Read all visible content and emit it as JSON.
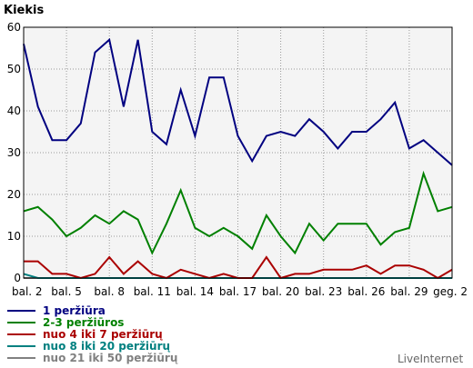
{
  "chart_data": {
    "type": "line",
    "title": "Kiekis",
    "xlabel": "",
    "ylabel": "",
    "ylim": [
      0,
      60
    ],
    "yticks": [
      0,
      10,
      20,
      30,
      40,
      50,
      60
    ],
    "grid": true,
    "legend_position": "bottom-left",
    "x_labels": [
      "bal. 2",
      "bal. 5",
      "bal. 8",
      "bal. 11",
      "bal. 14",
      "bal. 17",
      "bal. 20",
      "bal. 23",
      "bal. 26",
      "bal. 29",
      "geg. 2"
    ],
    "x_label_indices": [
      0,
      3,
      6,
      9,
      12,
      15,
      18,
      21,
      24,
      27,
      30
    ],
    "series": [
      {
        "name": "1 peržiūra",
        "color": "#000080",
        "values": [
          56,
          41,
          33,
          33,
          37,
          54,
          57,
          41,
          57,
          35,
          32,
          45,
          34,
          48,
          48,
          34,
          28,
          34,
          35,
          34,
          38,
          35,
          31,
          35,
          35,
          38,
          42,
          31,
          33,
          30,
          27
        ]
      },
      {
        "name": "2-3 peržiūros",
        "color": "#008000",
        "values": [
          16,
          17,
          14,
          10,
          12,
          15,
          13,
          16,
          14,
          6,
          13,
          21,
          12,
          10,
          12,
          10,
          7,
          15,
          10,
          6,
          13,
          9,
          13,
          13,
          13,
          8,
          11,
          12,
          25,
          16,
          17
        ]
      },
      {
        "name": "nuo 4 iki 7 peržiūrų",
        "color": "#aa0000",
        "values": [
          4,
          4,
          1,
          1,
          0,
          1,
          5,
          1,
          4,
          1,
          0,
          2,
          1,
          0,
          1,
          0,
          0,
          5,
          0,
          1,
          1,
          2,
          2,
          2,
          3,
          1,
          3,
          3,
          2,
          0,
          2
        ]
      },
      {
        "name": "nuo 8 iki 20 peržiūrų",
        "color": "#008080",
        "values": [
          1,
          0,
          0,
          0,
          0,
          0,
          0,
          0,
          0,
          0,
          0,
          0,
          0,
          0,
          0,
          0,
          0,
          0,
          0,
          0,
          0,
          0,
          0,
          0,
          0,
          0,
          0,
          0,
          0,
          0,
          0
        ]
      },
      {
        "name": "nuo 21 iki 50 peržiūrų",
        "color": "#808080",
        "values": [
          0,
          0,
          0,
          0,
          0,
          0,
          0,
          0,
          0,
          0,
          0,
          0,
          0,
          0,
          0,
          0,
          0,
          0,
          0,
          0,
          0,
          0,
          0,
          0,
          0,
          0,
          0,
          0,
          0,
          0,
          0
        ]
      }
    ],
    "brand": "LiveInternet"
  }
}
